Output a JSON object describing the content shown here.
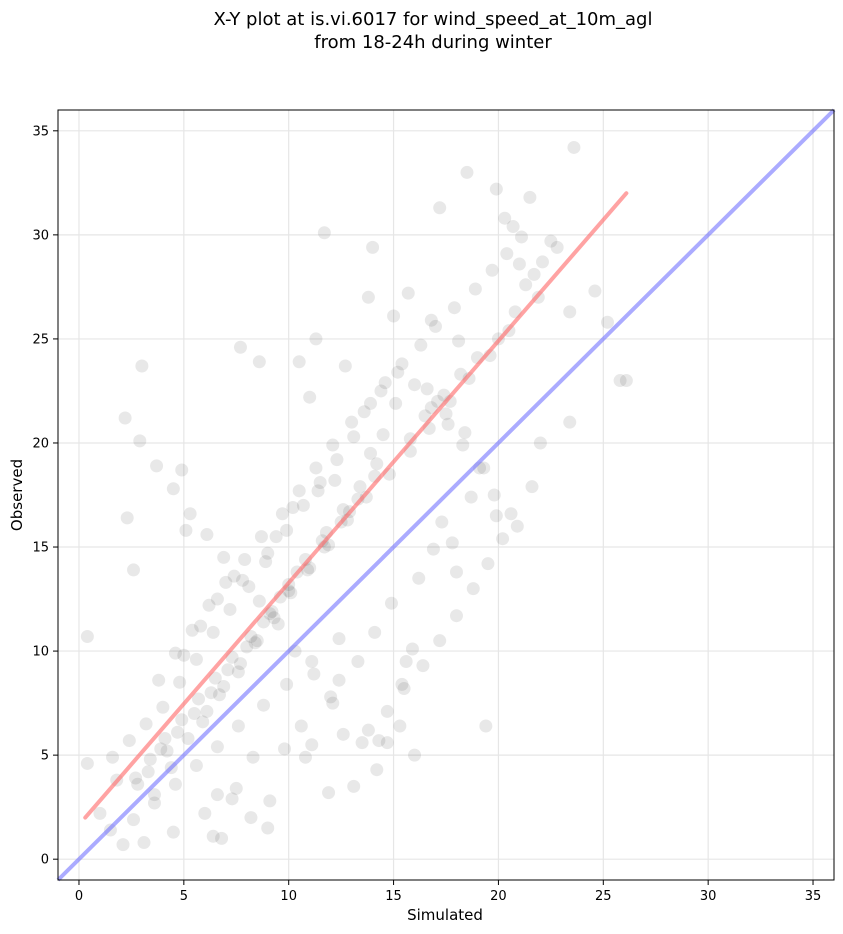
{
  "chart_data": {
    "type": "scatter",
    "title_line1": "X-Y plot at is.vi.6017 for wind_speed_at_10m_agl",
    "title_line2": "from 18-24h during winter",
    "xlabel": "Simulated",
    "ylabel": "Observed",
    "xlim": [
      -1,
      36
    ],
    "ylim": [
      -1,
      36
    ],
    "xticks": [
      0,
      5,
      10,
      15,
      20,
      25,
      30,
      35
    ],
    "yticks": [
      0,
      5,
      10,
      15,
      20,
      25,
      30,
      35
    ],
    "grid": true,
    "colors": {
      "points": "#000000",
      "fit_line": "#ff6666",
      "identity_line": "#6666ff"
    },
    "fit_line": {
      "x": [
        0.3,
        26.1
      ],
      "y": [
        2.0,
        32.0
      ]
    },
    "identity_line": {
      "x": [
        -1,
        36
      ],
      "y": [
        -1,
        36
      ]
    },
    "points": {
      "x": [
        23.6,
        18.5,
        11.7,
        14.0,
        17.2,
        19.9,
        20.3,
        20.7,
        21.1,
        21.5,
        21.0,
        20.4,
        21.7,
        22.5,
        24.6,
        25.2,
        25.8,
        26.1,
        23.4,
        23.4,
        3.0,
        0.4,
        4.9,
        2.3,
        2.6,
        7.7,
        8.6,
        5.1,
        10.5,
        11.3,
        11.0,
        12.7,
        13.8,
        15.0,
        15.7,
        16.8,
        18.1,
        17.1,
        17.3,
        9.0,
        4.5,
        3.1,
        2.1,
        1.5,
        1.0,
        0.4,
        6.4,
        6.8,
        11.1,
        12.6,
        13.1,
        14.3,
        15.3,
        16.0,
        19.4,
        20.9,
        21.6,
        22.0,
        19.9,
        18.0,
        15.6,
        6.6,
        13.5,
        14.2,
        14.7,
        15.4,
        15.9,
        10.8,
        11.9,
        9.1,
        8.2,
        7.3,
        6.0,
        7.5,
        8.3,
        9.8,
        10.6,
        12.0,
        12.4,
        13.3,
        14.1,
        14.9,
        16.2,
        16.9,
        17.8,
        18.7,
        19.3,
        18.4,
        17.5,
        16.6,
        15.1,
        14.5,
        13.9,
        12.2,
        11.4,
        10.2,
        9.4,
        8.9,
        8.1,
        7.2,
        6.4,
        5.6,
        4.8,
        4.0,
        3.2,
        2.4,
        1.6,
        2.8,
        3.6,
        4.4,
        5.2,
        6.1,
        6.9,
        7.7,
        8.5,
        9.3,
        10.1,
        10.9,
        11.7,
        12.5,
        13.3,
        14.1,
        12.9,
        11.6,
        10.4,
        9.6,
        8.8,
        8.0,
        7.1,
        6.3,
        5.5,
        4.7,
        3.9,
        3.3,
        5.0,
        5.8,
        6.6,
        7.4,
        9.0,
        9.9,
        10.7,
        11.5,
        12.3,
        13.1,
        13.6,
        14.4,
        15.2,
        16.0,
        16.8,
        17.6,
        18.3,
        19.1,
        19.8,
        20.6,
        20.2,
        19.5,
        18.8,
        18.0,
        17.2,
        16.4,
        15.5,
        14.7,
        13.8,
        12.1,
        11.2,
        10.3,
        9.5,
        8.6,
        7.8,
        6.9,
        6.1,
        5.3,
        4.5,
        3.7,
        2.9,
        2.2,
        1.8,
        4.2,
        5.9,
        6.7,
        7.6,
        8.4,
        9.2,
        10.0,
        10.8,
        11.8,
        12.6,
        13.4,
        14.2,
        15.8,
        16.5,
        17.4,
        18.2,
        19.0,
        20.0,
        20.8,
        21.3,
        22.1,
        22.8,
        21.9,
        20.5,
        19.6,
        18.6,
        17.7,
        16.7,
        15.8,
        14.8,
        13.7,
        12.8,
        11.9,
        11.0,
        10.0,
        9.1,
        8.2,
        7.3,
        6.5,
        5.7,
        4.9,
        4.1,
        3.4,
        2.7,
        3.8,
        4.6,
        5.4,
        6.2,
        7.0,
        7.9,
        8.7,
        9.7,
        10.5,
        11.3,
        12.1,
        13.0,
        13.9,
        14.6,
        15.4,
        16.3,
        17.0,
        17.9,
        18.9,
        19.7,
        12.4,
        11.1,
        9.9,
        8.8,
        7.6,
        6.6,
        5.6,
        4.6,
        3.6,
        2.6
      ],
      "y": [
        34.2,
        33.0,
        30.1,
        29.4,
        31.3,
        32.2,
        30.8,
        30.4,
        29.9,
        31.8,
        28.6,
        29.1,
        28.1,
        29.7,
        27.3,
        25.8,
        23.0,
        23.0,
        26.3,
        21.0,
        23.7,
        10.7,
        18.7,
        16.4,
        13.9,
        24.6,
        23.9,
        15.8,
        23.9,
        25.0,
        22.2,
        23.7,
        27.0,
        26.1,
        27.2,
        25.9,
        24.9,
        22.0,
        16.2,
        1.5,
        1.3,
        0.8,
        0.7,
        1.4,
        2.2,
        4.6,
        1.1,
        1.0,
        5.5,
        6.0,
        3.5,
        5.7,
        6.4,
        5.0,
        6.4,
        16.0,
        17.9,
        20.0,
        16.5,
        13.8,
        9.5,
        3.1,
        5.6,
        4.3,
        5.6,
        8.4,
        10.1,
        4.9,
        3.2,
        2.8,
        2.0,
        2.9,
        2.2,
        3.4,
        4.9,
        5.3,
        6.4,
        7.8,
        8.6,
        9.5,
        10.9,
        12.3,
        13.5,
        14.9,
        15.2,
        17.4,
        18.8,
        20.5,
        21.4,
        22.6,
        21.9,
        20.4,
        19.5,
        18.2,
        17.7,
        16.9,
        15.5,
        14.3,
        13.1,
        12.0,
        10.9,
        9.6,
        8.5,
        7.3,
        6.5,
        5.7,
        4.9,
        3.6,
        3.1,
        4.4,
        5.8,
        7.1,
        8.3,
        9.4,
        10.5,
        11.6,
        12.8,
        13.9,
        15.0,
        16.2,
        17.3,
        18.4,
        16.7,
        15.3,
        13.8,
        12.6,
        11.4,
        10.2,
        9.1,
        8.0,
        7.0,
        6.1,
        5.3,
        4.2,
        9.8,
        11.2,
        12.5,
        13.6,
        14.7,
        15.8,
        17.0,
        18.1,
        19.2,
        20.3,
        21.5,
        22.5,
        23.4,
        22.8,
        21.7,
        20.9,
        19.9,
        18.8,
        17.5,
        16.6,
        15.4,
        14.2,
        13.0,
        11.7,
        10.5,
        9.3,
        8.2,
        7.1,
        6.2,
        7.5,
        8.9,
        10.0,
        11.3,
        12.4,
        13.4,
        14.5,
        15.6,
        16.6,
        17.8,
        18.9,
        20.1,
        21.2,
        3.8,
        5.2,
        6.6,
        7.9,
        9.0,
        10.4,
        11.9,
        13.2,
        14.4,
        15.7,
        16.8,
        17.9,
        19.0,
        20.2,
        21.3,
        22.3,
        23.3,
        24.1,
        25.0,
        26.3,
        27.6,
        28.7,
        29.4,
        27.0,
        25.4,
        24.2,
        23.1,
        22.0,
        20.7,
        19.6,
        18.5,
        17.4,
        16.3,
        15.1,
        14.0,
        12.9,
        11.8,
        10.7,
        9.7,
        8.7,
        7.7,
        6.7,
        5.8,
        4.8,
        3.9,
        8.6,
        9.9,
        11.0,
        12.2,
        13.3,
        14.4,
        15.5,
        16.6,
        17.7,
        18.8,
        19.9,
        21.0,
        21.9,
        22.9,
        23.8,
        24.7,
        25.6,
        26.5,
        27.4,
        28.3,
        10.6,
        9.5,
        8.4,
        7.4,
        6.4,
        5.4,
        4.5,
        3.6,
        2.7,
        1.9
      ]
    }
  }
}
